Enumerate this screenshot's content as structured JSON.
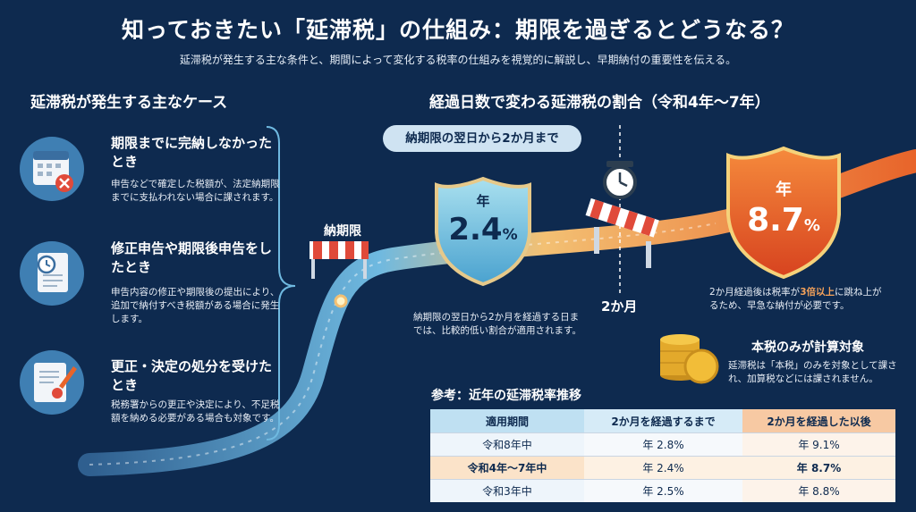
{
  "header": {
    "title": "知っておきたい「延滞税」の仕組み：期限を過ぎるとどうなる？",
    "subtitle": "延滞税が発生する主な条件と、期間によって変化する税率の仕組みを視覚的に解説し、早期納付の重要性を伝える。"
  },
  "cases_section": {
    "heading": "延滞税が発生する主なケース",
    "items": [
      {
        "icon": "calendar-cross-icon",
        "title": "期限までに完納しなかったとき",
        "description": "申告などで確定した税額が、法定納期限までに支払われない場合に課されます。"
      },
      {
        "icon": "document-clock-icon",
        "title": "修正申告や期限後申告をしたとき",
        "description": "申告内容の修正や期限後の提出により、追加で納付すべき税額がある場合に発生します。"
      },
      {
        "icon": "document-pen-seal-icon",
        "title": "更正・決定の処分を受けたとき",
        "description": "税務署からの更正や決定により、不足税額を納める必要がある場合も対象です。"
      }
    ]
  },
  "timeline": {
    "heading": "経過日数で変わる延滞税の割合（令和4年〜7年）",
    "pill": "納期限の翌日から2か月まで",
    "deadline_label": "納期限",
    "two_month_label": "2か月",
    "shield_low": {
      "year_label": "年",
      "rate": "2.4",
      "unit": "%"
    },
    "shield_high": {
      "year_label": "年",
      "rate": "8.7",
      "unit": "%"
    },
    "low_desc": "納期限の翌日から2か月を経過する日までは、比較的低い割合が適用されます。",
    "high_desc_pre": "2か月経過後は税率が",
    "high_desc_emph": "3倍以上",
    "high_desc_post": "に跳ね上がるため、早急な納付が必要です。"
  },
  "principal": {
    "title": "本税のみが計算対象",
    "description": "延滞税は「本税」のみを対象として課され、加算税などには課されません。"
  },
  "reference": {
    "title": "参考：近年の延滞税率推移",
    "headers": [
      "適用期間",
      "2か月を経過するまで",
      "2か月を経過した以後"
    ],
    "rows": [
      {
        "period": "令和8年中",
        "before": "年 2.8%",
        "after": "年 9.1%"
      },
      {
        "period": "令和4年〜7年中",
        "before": "年 2.4%",
        "after": "年 8.7%"
      },
      {
        "period": "令和3年中",
        "before": "年 2.5%",
        "after": "年 8.8%"
      }
    ]
  },
  "colors": {
    "background": "#0e2a4f",
    "accent_orange": "#e8642a",
    "accent_blue": "#6fc3e8",
    "table_header_orange": "#f7c9a3"
  }
}
